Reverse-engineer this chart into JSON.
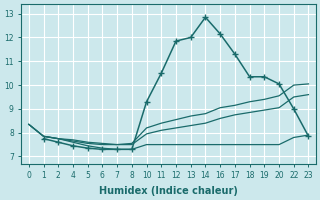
{
  "xlabel": "Humidex (Indice chaleur)",
  "bg_color": "#cce8ec",
  "grid_color": "#ffffff",
  "line_color": "#1a6b6b",
  "xtick_labels": [
    "0",
    "1",
    "2",
    "4",
    "5",
    "6",
    "7",
    "8",
    "10",
    "11",
    "12",
    "13",
    "14",
    "16",
    "17",
    "18",
    "19",
    "20",
    "22",
    "23"
  ],
  "yticks": [
    7,
    8,
    9,
    10,
    11,
    12,
    13
  ],
  "ylim": [
    6.7,
    13.4
  ],
  "line1_x": [
    0,
    1,
    2,
    3,
    4,
    5,
    6,
    7,
    8,
    9,
    10,
    11,
    12,
    13,
    14,
    15,
    16,
    17,
    18,
    19
  ],
  "line1_y": [
    8.35,
    7.85,
    7.75,
    7.6,
    7.45,
    7.35,
    7.3,
    7.3,
    7.5,
    7.5,
    7.5,
    7.5,
    7.5,
    7.5,
    7.5,
    7.5,
    7.5,
    7.5,
    7.8,
    7.9
  ],
  "line2_x": [
    0,
    1,
    2,
    3,
    4,
    5,
    6,
    7,
    8,
    9,
    10,
    11,
    12,
    13,
    14,
    15,
    16,
    17,
    18,
    19
  ],
  "line2_y": [
    8.35,
    7.85,
    7.75,
    7.65,
    7.55,
    7.5,
    7.5,
    7.5,
    7.95,
    8.1,
    8.2,
    8.3,
    8.4,
    8.6,
    8.75,
    8.85,
    8.95,
    9.05,
    9.5,
    9.6
  ],
  "line3_x": [
    0,
    1,
    2,
    3,
    4,
    5,
    6,
    7,
    8,
    9,
    10,
    11,
    12,
    13,
    14,
    15,
    16,
    17,
    18,
    19
  ],
  "line3_y": [
    8.35,
    7.85,
    7.75,
    7.7,
    7.6,
    7.55,
    7.5,
    7.55,
    8.2,
    8.4,
    8.55,
    8.7,
    8.8,
    9.05,
    9.15,
    9.3,
    9.4,
    9.55,
    10.0,
    10.05
  ],
  "line4_x": [
    1,
    2,
    3,
    4,
    5,
    6,
    7,
    8,
    9,
    10,
    11,
    12,
    13,
    14,
    15,
    16,
    17,
    18,
    19
  ],
  "line4_y": [
    7.75,
    7.6,
    7.45,
    7.35,
    7.3,
    7.3,
    7.3,
    9.3,
    10.5,
    11.85,
    12.0,
    12.85,
    12.15,
    11.3,
    10.35,
    10.35,
    10.05,
    9.0,
    7.85
  ]
}
